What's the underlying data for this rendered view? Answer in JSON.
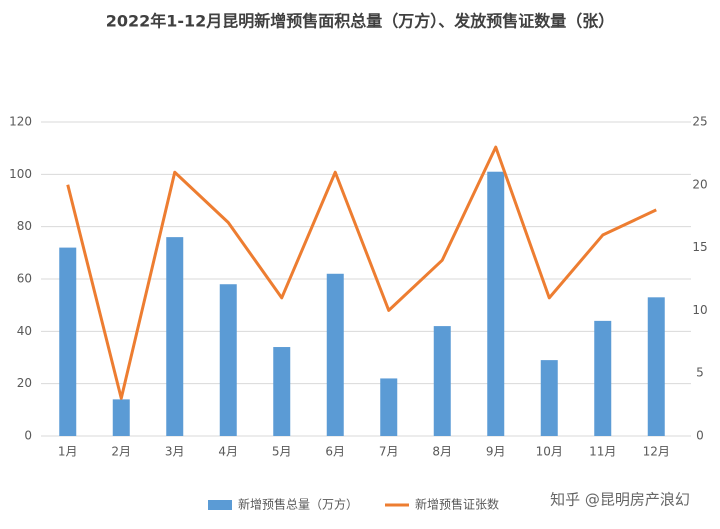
{
  "chart_data": {
    "type": "bar",
    "title": "2022年1-12月昆明新增预售面积总量（万方）、发放预售证数量（张）",
    "categories": [
      "1月",
      "2月",
      "3月",
      "4月",
      "5月",
      "6月",
      "7月",
      "8月",
      "9月",
      "10月",
      "11月",
      "12月"
    ],
    "series": [
      {
        "name": "新增预售总量（万方）",
        "type": "bar",
        "color": "#5b9bd5",
        "values": [
          72,
          14,
          76,
          58,
          34,
          62,
          22,
          42,
          101,
          29,
          44,
          53
        ]
      },
      {
        "name": "新增预售证张数",
        "type": "line",
        "axis": "y2",
        "color": "#ed7d31",
        "values": [
          20,
          3,
          21,
          17,
          11,
          21,
          10,
          14,
          23,
          11,
          16,
          18
        ]
      }
    ],
    "ylim": [
      0,
      120
    ],
    "yticks": [
      0,
      20,
      40,
      60,
      80,
      100,
      120
    ],
    "y2lim": [
      0,
      25
    ],
    "y2ticks": [
      0,
      5,
      10,
      15,
      20,
      25
    ],
    "grid": true,
    "legend": "bottom",
    "watermark": "知乎 @昆明房产浪幻"
  }
}
